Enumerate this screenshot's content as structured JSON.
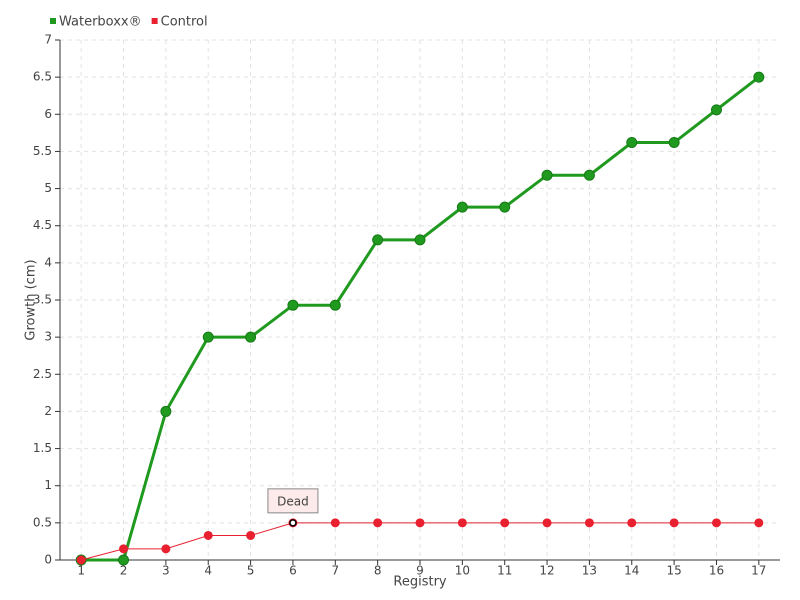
{
  "chart_data": {
    "type": "line",
    "x_label": "Registry",
    "y_label": "Growth (cm)",
    "categories": [
      "1",
      "2",
      "3",
      "4",
      "5",
      "6",
      "7",
      "8",
      "9",
      "10",
      "11",
      "12",
      "13",
      "14",
      "15",
      "16",
      "17"
    ],
    "series": [
      {
        "name": "Waterboxx®",
        "color": "#1f9a1f",
        "values": [
          0,
          0,
          2,
          3,
          3,
          3.43,
          3.43,
          4.31,
          4.31,
          4.75,
          4.75,
          5.18,
          5.18,
          5.62,
          5.62,
          6.06,
          6.5
        ]
      },
      {
        "name": "Control",
        "color": "#e8202f",
        "values": [
          0,
          0.15,
          0.15,
          0.33,
          0.33,
          0.5,
          0.5,
          0.5,
          0.5,
          0.5,
          0.5,
          0.5,
          0.5,
          0.5,
          0.5,
          0.5,
          0.5
        ]
      }
    ],
    "annotations": [
      {
        "label": "Dead",
        "x": "6",
        "y": 0.5
      }
    ],
    "ylim": [
      0,
      7
    ],
    "yticks": [
      0,
      0.5,
      1,
      1.5,
      2,
      2.5,
      3,
      3.5,
      4,
      4.5,
      5,
      5.5,
      6,
      6.5,
      7
    ],
    "grid": true,
    "legend": "top-left"
  }
}
